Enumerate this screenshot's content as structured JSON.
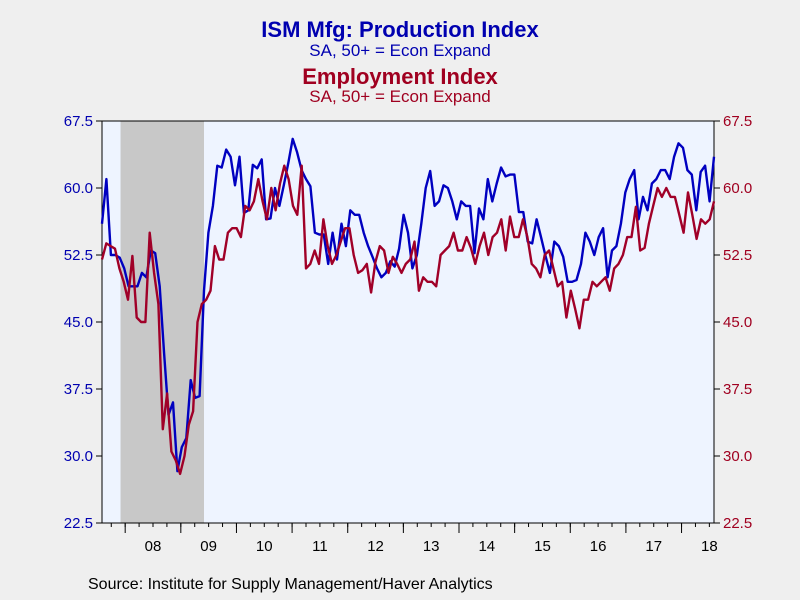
{
  "titles": {
    "main_title": "ISM Mfg: Production Index",
    "main_subtitle": "SA, 50+ = Econ Expand",
    "second_title": "Employment Index",
    "second_subtitle": "SA, 50+ = Econ Expand"
  },
  "source": "Source:  Institute for Supply Management/Haver Analytics",
  "colors": {
    "production": "#0000c0",
    "employment": "#a00028",
    "plot_bg": "#eef4ff",
    "recession": "#c8c8c8",
    "page_bg": "#efefef"
  },
  "chart_data": {
    "type": "line",
    "title": "ISM Mfg: Production Index / Employment Index",
    "x_start": "2007-08",
    "x_end": "2018-08",
    "x_tick_labels": [
      "08",
      "09",
      "10",
      "11",
      "12",
      "13",
      "14",
      "15",
      "16",
      "17",
      "18"
    ],
    "ylim": [
      22.5,
      67.5
    ],
    "y_ticks_left": [
      "67.5",
      "60.0",
      "52.5",
      "45.0",
      "37.5",
      "30.0",
      "22.5"
    ],
    "y_ticks_right": [
      "67.5",
      "60.0",
      "52.5",
      "45.0",
      "37.5",
      "30.0",
      "22.5"
    ],
    "recession_shading": {
      "start": "2007-12",
      "end": "2009-06"
    },
    "series": [
      {
        "name": "ISM Mfg: Production Index",
        "axis": "left",
        "values": [
          56,
          61,
          52.5,
          52.5,
          52.2,
          51,
          49,
          49,
          49,
          50.5,
          50,
          53,
          52.7,
          49,
          41.5,
          34.6,
          36,
          28.3,
          31,
          32,
          38.5,
          36.5,
          36.7,
          48.5,
          55,
          58,
          62.5,
          62.3,
          64.3,
          63.5,
          60.3,
          63.5,
          57.2,
          57.5,
          62.6,
          62.2,
          63.2,
          56.5,
          56.6,
          60,
          58,
          60.3,
          62.8,
          65.5,
          64,
          62,
          61,
          60.2,
          55,
          54.8,
          54.8,
          51.5,
          55,
          52,
          56,
          53.5,
          57.5,
          57,
          57,
          55,
          53.5,
          52.3,
          51,
          50,
          50.5,
          51.8,
          51.2,
          53.2,
          57,
          55,
          51,
          52.5,
          56,
          60,
          61.9,
          58,
          58.5,
          60.3,
          60,
          58.5,
          56.5,
          58.5,
          58,
          58,
          52.7,
          57.7,
          56.5,
          61,
          58.5,
          60.5,
          62.3,
          61.3,
          61.5,
          61.5,
          57.3,
          57.3,
          54,
          53.8,
          56.5,
          54.5,
          52.4,
          50.5,
          54,
          53.5,
          52.3,
          49.5,
          49.5,
          49.7,
          51.5,
          55,
          54,
          52.5,
          54.5,
          55.5,
          50,
          53,
          53.5,
          56,
          59.5,
          61,
          62,
          56.5,
          59,
          57.5,
          60.5,
          61,
          62,
          62,
          61,
          63.5,
          65,
          64.5,
          62,
          61.5,
          57.5,
          61.8,
          62.5,
          58.5,
          63.5
        ]
      },
      {
        "name": "Employment Index",
        "axis": "right",
        "values": [
          52,
          53.8,
          53.5,
          53.2,
          51,
          49.5,
          47.5,
          52.4,
          45.5,
          45,
          45,
          55,
          50.5,
          47,
          33,
          37,
          30.5,
          29.5,
          28,
          30,
          33.5,
          35,
          45,
          47,
          47.5,
          48.5,
          53.5,
          52,
          52,
          55,
          55.5,
          55.5,
          54.5,
          58,
          57.5,
          58.5,
          61,
          58.5,
          56.5,
          60,
          57.5,
          60.5,
          62.5,
          61,
          58,
          57,
          62.5,
          51,
          51.5,
          53,
          51.5,
          56.5,
          53.5,
          51.5,
          52.5,
          54,
          55.5,
          55.5,
          52.5,
          50.5,
          50.8,
          51.5,
          48.3,
          51.7,
          53.5,
          53,
          50.5,
          52.3,
          51.5,
          50.5,
          51.5,
          52,
          54,
          48.5,
          50,
          49.5,
          49.5,
          49,
          52.5,
          53,
          53.5,
          55,
          53,
          53,
          54.5,
          53.3,
          51.5,
          53.5,
          55,
          52.5,
          54.5,
          55,
          56.5,
          53,
          56.8,
          54.5,
          54.5,
          56.5,
          54.5,
          51.5,
          51,
          50,
          52.5,
          53,
          51,
          49,
          49.5,
          45.5,
          48.5,
          46.5,
          44.3,
          47.5,
          47.5,
          49.5,
          49,
          49.5,
          50,
          48.5,
          51,
          51.5,
          52.5,
          54.5,
          54.5,
          57.9,
          53,
          53.3,
          56,
          58,
          60,
          59,
          60,
          59,
          59,
          57,
          55,
          59.5,
          57,
          54.3,
          56.5,
          56,
          56.5,
          58.5
        ]
      }
    ]
  }
}
